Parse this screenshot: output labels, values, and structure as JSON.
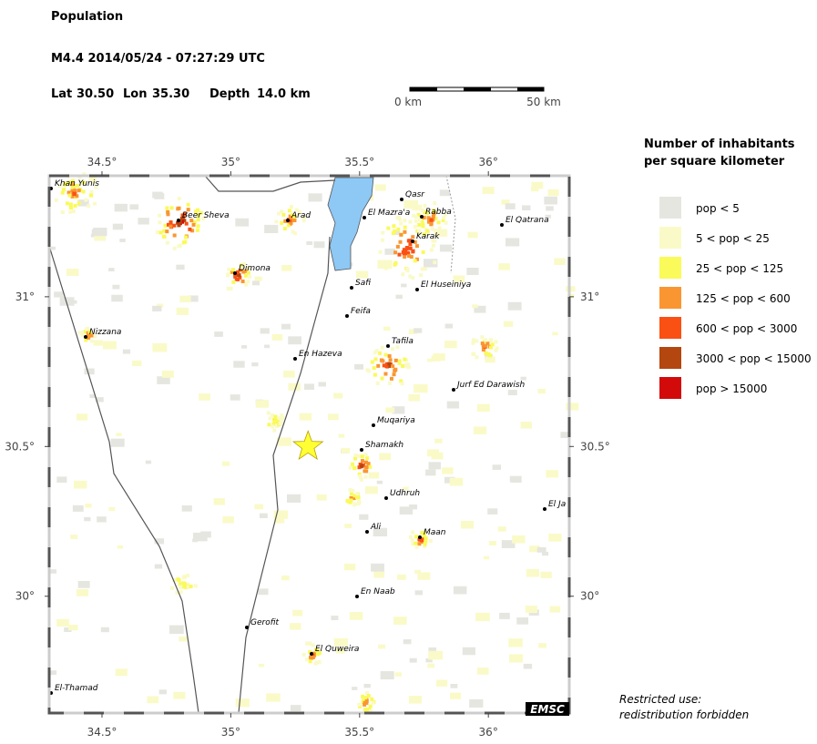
{
  "header": {
    "title": "Population",
    "event": "M4.4  2014/05/24 - 07:27:29 UTC",
    "lat_label": "Lat",
    "lat": {
      "value": 30.5,
      "label": "30.50"
    },
    "lon_label": "Lon",
    "lon": {
      "value": 35.3,
      "label": "35.30"
    },
    "depth_label": "Depth",
    "depth": "14.0 km"
  },
  "scale_bar": {
    "start": "0 km",
    "end": "50 km"
  },
  "map": {
    "lonlim": [
      34.295,
      36.314
    ],
    "latlim": [
      29.61,
      31.404
    ],
    "lon_ticks": [
      {
        "value": 34.5,
        "label": "34.5°"
      },
      {
        "value": 35,
        "label": "35°"
      },
      {
        "value": 35.5,
        "label": "35.5°"
      },
      {
        "value": 36,
        "label": "36°"
      }
    ],
    "lat_ticks": [
      {
        "value": 30,
        "label": "30°"
      },
      {
        "value": 30.5,
        "label": "30.5°"
      },
      {
        "value": 31,
        "label": "31°"
      }
    ],
    "cities": [
      "Khan Yunis",
      "Beer Sheva",
      "Arad",
      "Dimona",
      "Nizzana",
      "En Hazeva",
      "Qasr",
      "El Mazra'a",
      "Rabba",
      "El Qatrana",
      "Karak",
      "Safi",
      "El Huseiniya",
      "Feifa",
      "Tafila",
      "Jurf Ed Darawish",
      "Muqariya",
      "Shamakh",
      "Udhruh",
      "El Ja",
      "Ali",
      "Maan",
      "En Naab",
      "Gerofit",
      "El Quweira",
      "El-Thamad"
    ],
    "logo": "EMSC"
  },
  "legend": {
    "title_lines": [
      "Number of inhabitants",
      "per square kilometer"
    ],
    "items": [
      {
        "label": "pop < 5",
        "color": "#e6e6e1"
      },
      {
        "label": "5 < pop < 25",
        "color": "#fafac8"
      },
      {
        "label": "25 < pop < 125",
        "color": "#fafa5a"
      },
      {
        "label": "125 < pop < 600",
        "color": "#fa9632"
      },
      {
        "label": "600 < pop < 3000",
        "color": "#fa5014"
      },
      {
        "label": "3000 < pop < 15000",
        "color": "#b4460f"
      },
      {
        "label": "pop > 15000",
        "color": "#d20a0a"
      }
    ]
  },
  "footer": [
    "Restricted use:",
    "redistribution forbidden"
  ]
}
